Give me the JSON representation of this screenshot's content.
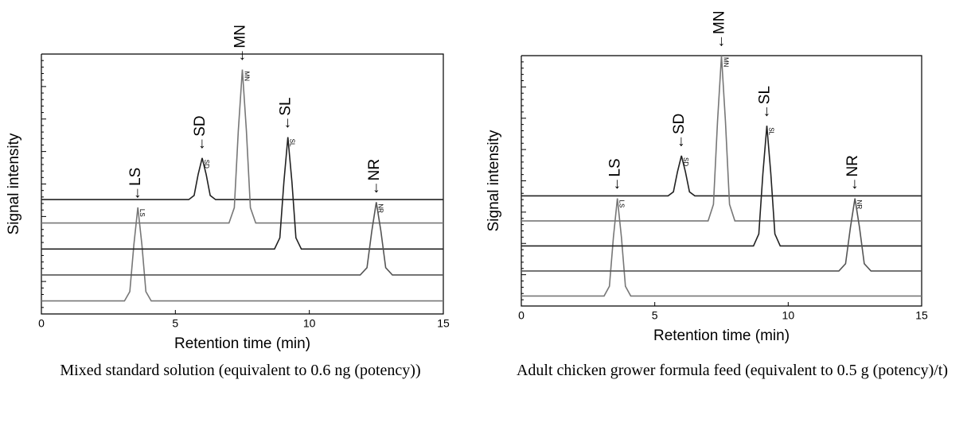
{
  "chart_data": [
    {
      "type": "line",
      "xlabel": "Retention time (min)",
      "ylabel": "Signal intensity",
      "caption": "Mixed standard solution (equivalent to 0.6 ng (potency))",
      "xlim": [
        0,
        15
      ],
      "xticks": [
        0,
        5,
        10,
        15
      ],
      "ylim": [
        0,
        100
      ],
      "annotations": [
        "←LS",
        "←SD",
        "←MN",
        "←SL",
        "←NR"
      ],
      "series": [
        {
          "name": "LS",
          "color": "#777777",
          "x": [
            0,
            3.1,
            3.3,
            3.45,
            3.6,
            3.75,
            3.9,
            4.1,
            15
          ],
          "values": [
            5,
            5,
            8.6,
            26.6,
            41,
            26.6,
            8.6,
            5,
            5
          ]
        },
        {
          "name": "SD",
          "color": "#222222",
          "x": [
            0,
            5.5,
            5.7,
            5.85,
            6,
            6.15,
            6.3,
            6.5,
            15
          ],
          "values": [
            44,
            44,
            45.6,
            53.6,
            60,
            53.6,
            45.6,
            44,
            44
          ]
        },
        {
          "name": "MN",
          "color": "#777777",
          "x": [
            0,
            7.0,
            7.2,
            7.35,
            7.5,
            7.65,
            7.8,
            8.0,
            15
          ],
          "values": [
            35,
            35,
            40.9,
            70.4,
            94,
            70.4,
            40.9,
            35,
            35
          ]
        },
        {
          "name": "SL",
          "color": "#222222",
          "x": [
            0,
            8.7,
            8.9,
            9.05,
            9.2,
            9.35,
            9.5,
            9.7,
            15
          ],
          "values": [
            25,
            25,
            29.3,
            50.8,
            68,
            50.8,
            29.3,
            25,
            25
          ]
        },
        {
          "name": "NR",
          "color": "#555555",
          "x": [
            0,
            11.9,
            12.15,
            12.33,
            12.5,
            12.67,
            12.85,
            13.1,
            15
          ],
          "values": [
            15,
            15,
            17.8,
            31.8,
            43,
            31.8,
            17.8,
            15,
            15
          ]
        }
      ]
    },
    {
      "type": "line",
      "xlabel": "Retention time (min)",
      "ylabel": "Signal intensity",
      "caption": "Adult chicken grower formula feed (equivalent to 0.5 g (potency)/t)",
      "xlim": [
        0,
        15
      ],
      "xticks": [
        0,
        5,
        10,
        15
      ],
      "ylim": [
        0,
        100
      ],
      "annotations": [
        "←LS",
        "←SD",
        "←MN",
        "←SL",
        "←NR"
      ],
      "series": [
        {
          "name": "LS",
          "color": "#777777",
          "x": [
            0,
            3.1,
            3.3,
            3.45,
            3.6,
            3.75,
            3.9,
            4.1,
            15
          ],
          "values": [
            4,
            4,
            7.9,
            27.4,
            43,
            27.4,
            7.9,
            4,
            4
          ]
        },
        {
          "name": "SD",
          "color": "#222222",
          "x": [
            0,
            5.5,
            5.7,
            5.85,
            6,
            6.15,
            6.3,
            6.5,
            15
          ],
          "values": [
            44,
            44,
            45.6,
            53.6,
            60,
            53.6,
            45.6,
            44,
            44
          ]
        },
        {
          "name": "MN",
          "color": "#777777",
          "x": [
            0,
            7.0,
            7.2,
            7.35,
            7.5,
            7.65,
            7.8,
            8.0,
            15
          ],
          "values": [
            34,
            34,
            40.6,
            73.6,
            100,
            73.6,
            40.6,
            34,
            34
          ]
        },
        {
          "name": "SL",
          "color": "#222222",
          "x": [
            0,
            8.7,
            8.9,
            9.05,
            9.2,
            9.35,
            9.5,
            9.7,
            15
          ],
          "values": [
            24,
            24,
            28.8,
            52.8,
            72,
            52.8,
            28.8,
            24,
            24
          ]
        },
        {
          "name": "NR",
          "color": "#555555",
          "x": [
            0,
            11.9,
            12.15,
            12.33,
            12.5,
            12.67,
            12.85,
            13.1,
            15
          ],
          "values": [
            14,
            14,
            16.9,
            31.4,
            43,
            31.4,
            16.9,
            14,
            14
          ]
        }
      ]
    }
  ]
}
